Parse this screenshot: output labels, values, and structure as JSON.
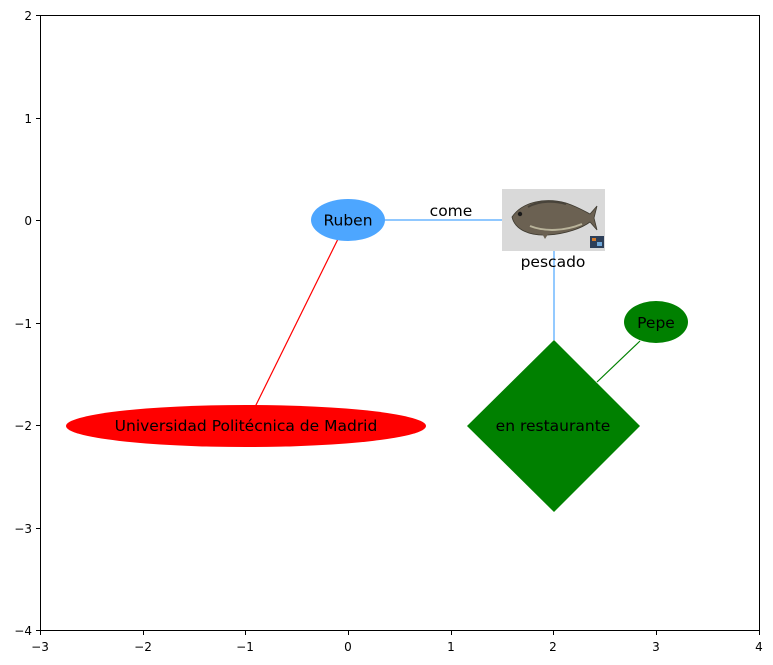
{
  "chart_data": {
    "type": "diagram",
    "xlim": [
      -3,
      4
    ],
    "ylim": [
      -4,
      2
    ],
    "x_ticks": [
      "−3",
      "−2",
      "−1",
      "0",
      "1",
      "2",
      "3",
      "4"
    ],
    "y_ticks": [
      "2",
      "1",
      "0",
      "−1",
      "−2",
      "−3",
      "−4"
    ],
    "grid": false,
    "nodes": {
      "ruben": {
        "label": "Ruben",
        "x": 0,
        "y": 0,
        "shape": "ellipse",
        "color": "#4da6ff"
      },
      "upm": {
        "label": "Universidad Politécnica de Madrid",
        "x": -1,
        "y": -2,
        "shape": "ellipse",
        "color": "#ff0000"
      },
      "fish": {
        "label": "pescado",
        "x": 2,
        "y": 0,
        "shape": "image",
        "icon": "fish-photo"
      },
      "rest": {
        "label": "en restaurante",
        "x": 2,
        "y": -2,
        "shape": "diamond",
        "color": "#008000"
      },
      "pepe": {
        "label": "Pepe",
        "x": 3,
        "y": -1,
        "shape": "ellipse",
        "color": "#008000"
      }
    },
    "edges": [
      {
        "from": "ruben",
        "to": "fish",
        "label": "come",
        "color": "#4da6ff"
      },
      {
        "from": "ruben",
        "to": "upm",
        "label": "",
        "color": "#ff0000"
      },
      {
        "from": "fish",
        "to": "rest",
        "label": "",
        "color": "#4da6ff"
      },
      {
        "from": "rest",
        "to": "pepe",
        "label": "",
        "color": "#008000"
      }
    ]
  }
}
